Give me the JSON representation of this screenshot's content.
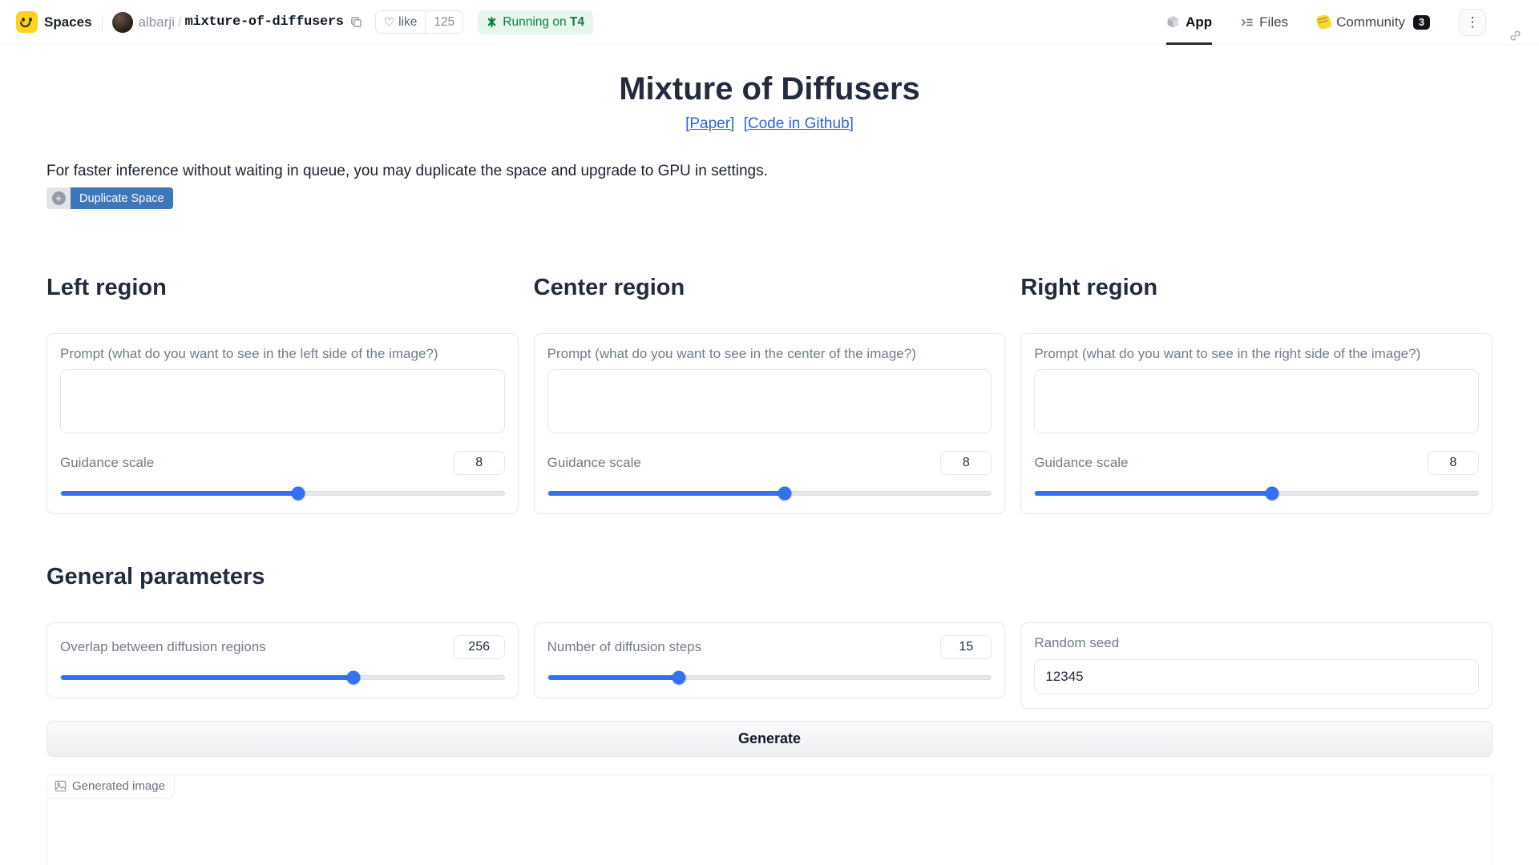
{
  "colors": {
    "accent_blue": "#3371f2",
    "link_blue": "#2e63e0",
    "running_badge_bg": "#e7f6ec",
    "running_badge_text": "#0e7c42",
    "duplicate_button_bg": "#3e76ba",
    "community_badge_bg": "#101317",
    "brand_yellow": "#ffd21e"
  },
  "navbar": {
    "brand_label": "Spaces",
    "owner": "albarji",
    "separator": "/",
    "space_name": "mixture-of-diffusers",
    "heart": "♡",
    "like_label": "like",
    "like_count": "125",
    "running_label": "Running on",
    "running_hardware": "T4",
    "tabs": {
      "app": "App",
      "files": "Files",
      "community": "Community",
      "community_badge": "3"
    },
    "menu_icon": "⋮"
  },
  "header": {
    "title": "Mixture of Diffusers",
    "link_paper": "[Paper]",
    "link_github": "[Code in Github]"
  },
  "notice": {
    "text": "For faster inference without waiting in queue, you may duplicate the space and upgrade to GPU in settings.",
    "duplicate_icon": "+",
    "duplicate_label": "Duplicate Space"
  },
  "regions": [
    {
      "title": "Left region",
      "prompt_label": "Prompt (what do you want to see in the left side of the image?)",
      "prompt_value": "",
      "guidance_label": "Guidance scale",
      "guidance_value": "8",
      "guidance_percent": 53.5
    },
    {
      "title": "Center region",
      "prompt_label": "Prompt (what do you want to see in the center of the image?)",
      "prompt_value": "",
      "guidance_label": "Guidance scale",
      "guidance_value": "8",
      "guidance_percent": 53.5
    },
    {
      "title": "Right region",
      "prompt_label": "Prompt (what do you want to see in the right side of the image?)",
      "prompt_value": "",
      "guidance_label": "Guidance scale",
      "guidance_value": "8",
      "guidance_percent": 53.5
    }
  ],
  "general": {
    "title": "General parameters",
    "overlap_label": "Overlap between diffusion regions",
    "overlap_value": "256",
    "overlap_percent": 66,
    "steps_label": "Number of diffusion steps",
    "steps_value": "15",
    "steps_percent": 29.5,
    "seed_label": "Random seed",
    "seed_value": "12345"
  },
  "generate_label": "Generate",
  "output": {
    "label": "Generated image"
  }
}
